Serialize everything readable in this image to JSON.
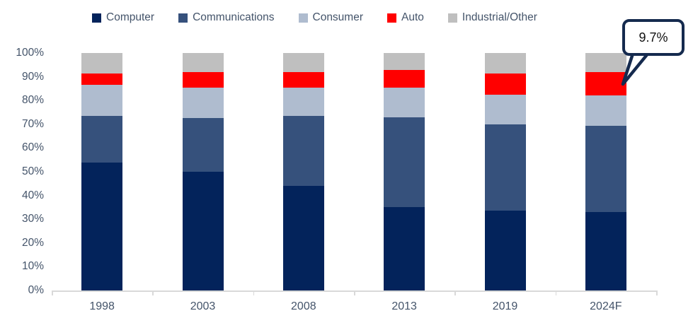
{
  "chart_data": {
    "type": "bar",
    "stacked": true,
    "percent_stacked": true,
    "title": "",
    "categories": [
      "1998",
      "2003",
      "2008",
      "2013",
      "2019",
      "2024F"
    ],
    "series": [
      {
        "name": "Computer",
        "color": "#03235B",
        "values": [
          54,
          50,
          44,
          35,
          33.5,
          33
        ]
      },
      {
        "name": "Communications",
        "color": "#36517C",
        "values": [
          19.5,
          22.5,
          29.5,
          38,
          36.5,
          36.5
        ]
      },
      {
        "name": "Consumer",
        "color": "#AFBCCF",
        "values": [
          13,
          13,
          12,
          12.5,
          12.5,
          12.8
        ]
      },
      {
        "name": "Auto",
        "color": "#FF0000",
        "values": [
          5,
          6.5,
          6.5,
          7.5,
          9,
          9.7
        ]
      },
      {
        "name": "Industrial/Other",
        "color": "#BFBFBF",
        "values": [
          8.5,
          8,
          8,
          7,
          8.5,
          8
        ]
      }
    ],
    "y_axis": {
      "min": 0,
      "max": 100,
      "step": 10,
      "tick_suffix": "%",
      "tick_labels": [
        "0%",
        "10%",
        "20%",
        "30%",
        "40%",
        "50%",
        "60%",
        "70%",
        "80%",
        "90%",
        "100%"
      ]
    },
    "legend_position": "top",
    "grid": false,
    "annotation": {
      "text": "9.7%",
      "target_category": "2024F",
      "target_series": "Auto"
    }
  },
  "colors": {
    "axis_text": "#44546A",
    "axis_line": "#D9D9D9",
    "callout_border": "#152A4E",
    "background": "#FFFFFF"
  }
}
